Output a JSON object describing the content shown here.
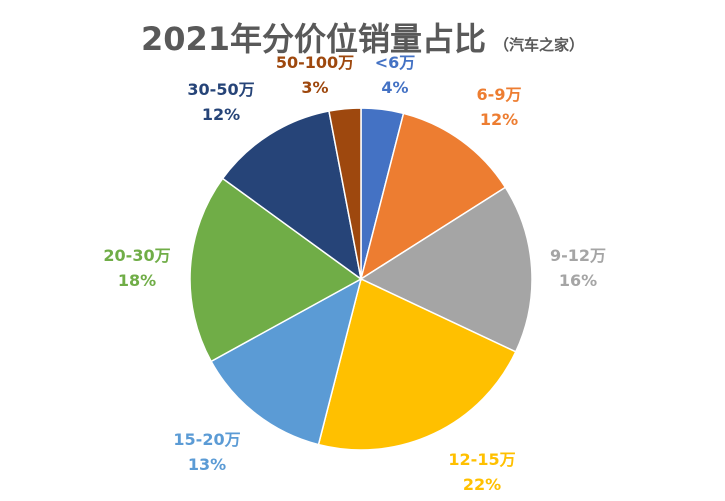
{
  "chart_data": {
    "type": "pie",
    "title": "2021年分价位销量占比",
    "subtitle": "（汽车之家）",
    "slices": [
      {
        "category": "<6万",
        "value": 4,
        "label": "4%",
        "color": "#4472C4"
      },
      {
        "category": "6-9万",
        "value": 12,
        "label": "12%",
        "color": "#ED7D31"
      },
      {
        "category": "9-12万",
        "value": 16,
        "label": "16%",
        "color": "#A5A5A5"
      },
      {
        "category": "12-15万",
        "value": 22,
        "label": "22%",
        "color": "#FFC000"
      },
      {
        "category": "15-20万",
        "value": 13,
        "label": "13%",
        "color": "#5B9BD5"
      },
      {
        "category": "20-30万",
        "value": 18,
        "label": "18%",
        "color": "#70AD47"
      },
      {
        "category": "30-50万",
        "value": 12,
        "label": "12%",
        "color": "#264478"
      },
      {
        "category": "50-100万",
        "value": 3,
        "label": "3%",
        "color": "#9E480E"
      }
    ],
    "start_angle": "12 o'clock",
    "direction": "clockwise",
    "legend": "none"
  }
}
